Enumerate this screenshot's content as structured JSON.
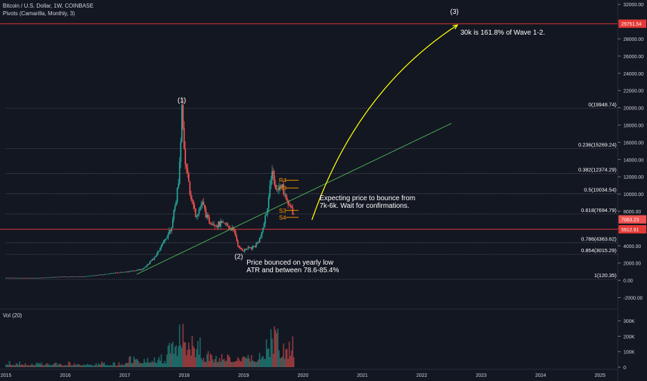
{
  "header": {
    "symbol": "Bitcoin / U.S. Dollar, 1W, COINBASE",
    "indicator": "Pivots (Camarilla, Monthly, 3)"
  },
  "volume": {
    "label": "Vol (20)",
    "axis_ticks": [
      "300K",
      "200K",
      "100K",
      "0"
    ]
  },
  "colors": {
    "background": "#131722",
    "up_candle": "#26a69a",
    "down_candle": "#ef5350",
    "trendline": "#4caf50",
    "projection": "#ffff00",
    "red_level": "#e53935",
    "pivot": "#ff9800",
    "grid_text": "#d1d4dc"
  },
  "chart_data": {
    "type": "candlestick",
    "title": "Bitcoin / U.S. Dollar, 1W, COINBASE",
    "xlabel": "",
    "ylabel": "",
    "x_ticks": [
      "2015",
      "2016",
      "2017",
      "2018",
      "2019",
      "2020",
      "2021",
      "2022",
      "2023",
      "2024",
      "2025"
    ],
    "y_ticks": [
      32000,
      30000,
      28000,
      26000,
      24000,
      22000,
      20000,
      18000,
      16000,
      14000,
      12000,
      10000,
      8000,
      6000,
      4000,
      2000,
      0,
      -2000
    ],
    "y_tick_labels": [
      "32000.00",
      "30000.00",
      "28000.00",
      "26000.00",
      "24000.00",
      "22000.00",
      "20000.00",
      "18000.00",
      "16000.00",
      "14000.00",
      "12000.00",
      "10000.00",
      "8000.00",
      "6000.00",
      "4000.00",
      "2000.00",
      "0.00",
      "-2000.00"
    ],
    "ylim": [
      -3000,
      32500
    ],
    "xlim": [
      2014.9,
      2025.3
    ],
    "price_path": [
      [
        2015.0,
        300
      ],
      [
        2015.5,
        260
      ],
      [
        2015.9,
        400
      ],
      [
        2016.3,
        420
      ],
      [
        2016.6,
        650
      ],
      [
        2016.9,
        900
      ],
      [
        2017.1,
        1050
      ],
      [
        2017.3,
        1300
      ],
      [
        2017.5,
        2600
      ],
      [
        2017.65,
        4300
      ],
      [
        2017.8,
        6500
      ],
      [
        2017.9,
        11000
      ],
      [
        2017.96,
        19500
      ],
      [
        2018.0,
        15000
      ],
      [
        2018.1,
        10000
      ],
      [
        2018.2,
        7500
      ],
      [
        2018.3,
        9000
      ],
      [
        2018.4,
        7000
      ],
      [
        2018.55,
        6400
      ],
      [
        2018.7,
        6500
      ],
      [
        2018.85,
        5600
      ],
      [
        2018.92,
        3700
      ],
      [
        2019.0,
        3500
      ],
      [
        2019.2,
        4000
      ],
      [
        2019.3,
        5200
      ],
      [
        2019.4,
        8500
      ],
      [
        2019.48,
        12500
      ],
      [
        2019.55,
        10500
      ],
      [
        2019.62,
        11500
      ],
      [
        2019.7,
        9500
      ],
      [
        2019.8,
        8200
      ],
      [
        2019.85,
        7300
      ]
    ],
    "fib_levels": [
      {
        "label": "0(19948.74)",
        "value": 19948.74
      },
      {
        "label": "0.236(15269.24)",
        "value": 15269.24
      },
      {
        "label": "0.382(12374.29)",
        "value": 12374.29
      },
      {
        "label": "0.5(10034.54)",
        "value": 10034.54
      },
      {
        "label": "0.618(7694.79)",
        "value": 7694.79
      },
      {
        "label": "0.786(4363.62)",
        "value": 4363.62
      },
      {
        "label": "0.854(3015.29)",
        "value": 3015.29
      },
      {
        "label": "1(120.35)",
        "value": 120.35
      }
    ],
    "horizontal_levels": [
      {
        "label": "29751.54",
        "value": 29751.54
      },
      {
        "label": "5912.91",
        "value": 5912.91
      }
    ],
    "current_price": {
      "label": "7063.23",
      "value": 7063.23
    },
    "pivots": [
      "R4",
      "R3",
      "S3",
      "S4"
    ],
    "wave_labels": [
      {
        "label": "(1)",
        "x": 2017.96,
        "y": 20600
      },
      {
        "label": "(2)",
        "x": 2018.92,
        "y": 2500
      },
      {
        "label": "(3)",
        "x": 2022.55,
        "y": 30900
      }
    ],
    "annotations": [
      {
        "lines": [
          "30k is 161.8% of Wave 1-2."
        ],
        "x": 2022.65,
        "y": 28500
      },
      {
        "lines": [
          "Expecting price to bounce from",
          "7k-6k. Wait for confirmations."
        ],
        "x": 2020.28,
        "y": 9300
      },
      {
        "lines": [
          "Price bounced on yearly low",
          "ATR and between 78.6-85.4%"
        ],
        "x": 2019.05,
        "y": 1800
      }
    ],
    "trendline": {
      "from": [
        2017.2,
        700
      ],
      "to": [
        2022.5,
        18200
      ]
    },
    "projection": {
      "from": [
        2020.15,
        7000
      ],
      "ctrl": [
        2020.9,
        22000
      ],
      "to": [
        2022.6,
        29600
      ]
    },
    "volume": {
      "axis_max": 350000,
      "start": 2015.0,
      "end": 2019.85
    }
  }
}
